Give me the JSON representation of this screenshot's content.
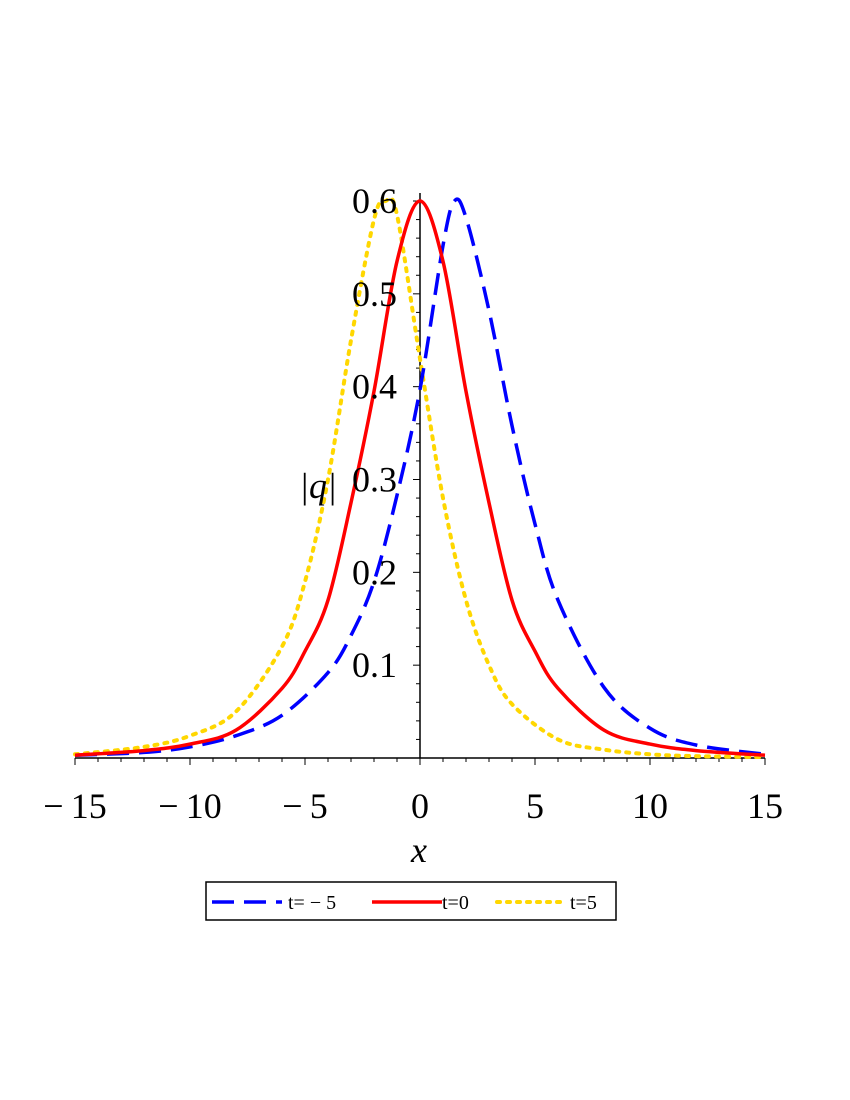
{
  "chart_data": {
    "type": "line",
    "title": "",
    "xlabel": "x",
    "ylabel": "|q|",
    "xlim": [
      -15,
      15
    ],
    "ylim": [
      0,
      0.6
    ],
    "x_ticks": [
      -15,
      -10,
      -5,
      0,
      5,
      10,
      15
    ],
    "x_tick_labels": [
      "-15",
      "-10",
      "-5",
      "0",
      "5",
      "10",
      "15"
    ],
    "y_ticks": [
      0.1,
      0.2,
      0.3,
      0.4,
      0.5,
      0.6
    ],
    "y_tick_labels": [
      "0.1",
      "0.2",
      "0.3",
      "0.4",
      "0.5",
      "0.6"
    ],
    "grid": false,
    "legend_position": "bottom",
    "series": [
      {
        "name": "t= − 5",
        "color": "#0000ff",
        "style": "dashed",
        "x": [
          -15,
          -12,
          -10,
          -8,
          -6,
          -4,
          -3,
          -2,
          -1,
          0,
          1,
          1.5,
          2,
          3,
          4,
          5,
          6,
          8,
          10,
          12,
          15
        ],
        "y": [
          0.003,
          0.006,
          0.012,
          0.024,
          0.046,
          0.092,
          0.132,
          0.19,
          0.283,
          0.397,
          0.552,
          0.6,
          0.582,
          0.482,
          0.358,
          0.252,
          0.17,
          0.076,
          0.032,
          0.014,
          0.004
        ]
      },
      {
        "name": "t=0",
        "color": "#ff0000",
        "style": "solid",
        "x": [
          -15,
          -12,
          -10,
          -8,
          -6,
          -5,
          -4,
          -3,
          -2,
          -1,
          0,
          1,
          2,
          3,
          4,
          5,
          6,
          8,
          10,
          12,
          15
        ],
        "y": [
          0.003,
          0.008,
          0.015,
          0.03,
          0.075,
          0.115,
          0.17,
          0.275,
          0.395,
          0.535,
          0.6,
          0.535,
          0.395,
          0.275,
          0.17,
          0.115,
          0.075,
          0.03,
          0.015,
          0.008,
          0.003
        ]
      },
      {
        "name": "t=5",
        "color": "#ffd700",
        "style": "dotted",
        "x": [
          -15,
          -12,
          -10,
          -8,
          -6,
          -5,
          -4,
          -3,
          -2,
          -1.5,
          -1,
          0,
          1,
          2,
          3,
          4,
          6,
          8,
          10,
          12,
          15
        ],
        "y": [
          0.004,
          0.012,
          0.024,
          0.05,
          0.12,
          0.19,
          0.3,
          0.45,
          0.58,
          0.6,
          0.585,
          0.43,
          0.28,
          0.17,
          0.1,
          0.058,
          0.02,
          0.009,
          0.004,
          0.002,
          0.001
        ]
      }
    ]
  }
}
